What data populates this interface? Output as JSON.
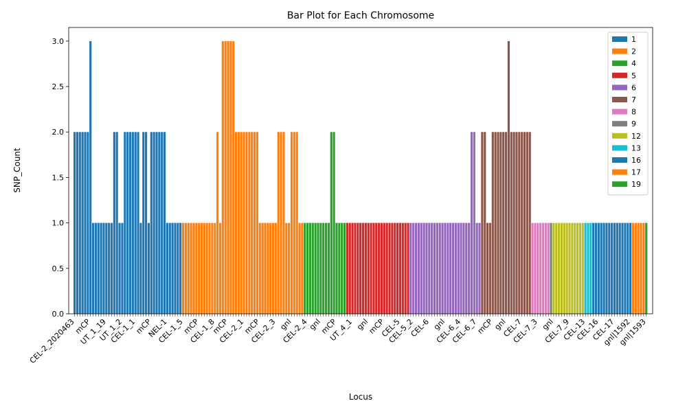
{
  "chart_data": {
    "type": "bar",
    "title": "Bar Plot for Each Chromosome",
    "xlabel": "Locus",
    "ylabel": "SNP_Count",
    "ylim": [
      0,
      3.15
    ],
    "yticks": [
      "0.0",
      "0.5",
      "1.0",
      "1.5",
      "2.0",
      "2.5",
      "3.0"
    ],
    "legend_position": "top-right",
    "grid": false,
    "series": [
      {
        "name": "1",
        "color": "#1f77b4",
        "values": [
          2,
          2,
          2,
          2,
          2,
          2,
          3,
          1,
          1,
          1,
          1,
          1,
          1,
          1,
          1,
          2,
          2,
          1,
          1,
          2,
          2,
          2,
          2,
          2,
          2,
          1,
          2,
          2,
          1,
          2,
          2,
          2,
          2,
          2,
          2,
          1,
          1,
          1,
          1,
          1,
          1
        ]
      },
      {
        "name": "2",
        "color": "#ff7f0e",
        "values": [
          1,
          1,
          1,
          1,
          1,
          1,
          1,
          1,
          1,
          1,
          1,
          1,
          1,
          2,
          1,
          3,
          3,
          3,
          3,
          3,
          2,
          2,
          2,
          2,
          2,
          2,
          2,
          2,
          2,
          1,
          1,
          1,
          1,
          1,
          1,
          1,
          2,
          2,
          2,
          1,
          1,
          2,
          2,
          2,
          1,
          1
        ]
      },
      {
        "name": "4",
        "color": "#2ca02c",
        "values": [
          1,
          1,
          1,
          1,
          1,
          1,
          1,
          1,
          1,
          1,
          2,
          2,
          1,
          1,
          1,
          1
        ]
      },
      {
        "name": "5",
        "color": "#d62728",
        "values": [
          1,
          1,
          1,
          1,
          1,
          1,
          1,
          1,
          1,
          1,
          1,
          1,
          1,
          1,
          1,
          1,
          1,
          1,
          1,
          1,
          1,
          1,
          1,
          1
        ]
      },
      {
        "name": "6",
        "color": "#9467bd",
        "values": [
          1,
          1,
          1,
          1,
          1,
          1,
          1,
          1,
          1,
          1,
          1,
          1,
          1,
          1,
          1,
          1,
          1,
          1,
          1,
          1,
          1,
          1,
          1,
          2,
          2,
          1,
          1
        ]
      },
      {
        "name": "7",
        "color": "#8c564b",
        "values": [
          2,
          2,
          1,
          1,
          2,
          2,
          2,
          2,
          2,
          2,
          3,
          2,
          2,
          2,
          2,
          2,
          2,
          2,
          2
        ]
      },
      {
        "name": "8",
        "color": "#e377c2",
        "values": [
          1,
          1,
          1,
          1,
          1,
          1,
          1
        ]
      },
      {
        "name": "9",
        "color": "#7f7f7f",
        "values": [
          1
        ]
      },
      {
        "name": "12",
        "color": "#bcbd22",
        "values": [
          1,
          1,
          1,
          1,
          1,
          1,
          1,
          1,
          1,
          1,
          1,
          1
        ]
      },
      {
        "name": "13",
        "color": "#17becf",
        "values": [
          1,
          1,
          1
        ]
      },
      {
        "name": "16",
        "color": "#1f77b4",
        "values": [
          1,
          1,
          1,
          1,
          1,
          1,
          1,
          1,
          1,
          1,
          1,
          1,
          1,
          1,
          1
        ]
      },
      {
        "name": "17",
        "color": "#ff7f0e",
        "values": [
          1,
          1,
          1,
          1,
          1
        ]
      },
      {
        "name": "19",
        "color": "#2ca02c",
        "values": [
          1
        ]
      }
    ],
    "x_tick_labels": [
      "CEL-2_2020463",
      "mCP",
      "UT_1_19",
      "UT_1_2",
      "CEL-1_1",
      "mCP",
      "NEL-1",
      "CEL-1_5",
      "mCP",
      "CEL-1_8",
      "mCP",
      "CEL-2_1",
      "mCP",
      "CEL-2_3",
      "gnl",
      "CEL-2_4",
      "gnl",
      "mCP",
      "UT_4_1",
      "gnl",
      "mCP",
      "CEL-5",
      "CEL-5_2",
      "CEL-6",
      "gnl",
      "CEL-6_4",
      "CEL-6_7",
      "mCP",
      "gnl",
      "CEL-7",
      "CEL-7_3",
      "gnl",
      "CEL-7_9",
      "CEL-13",
      "CEL-16",
      "CEL-17",
      "gnl|1592",
      "gnl|1593"
    ]
  }
}
